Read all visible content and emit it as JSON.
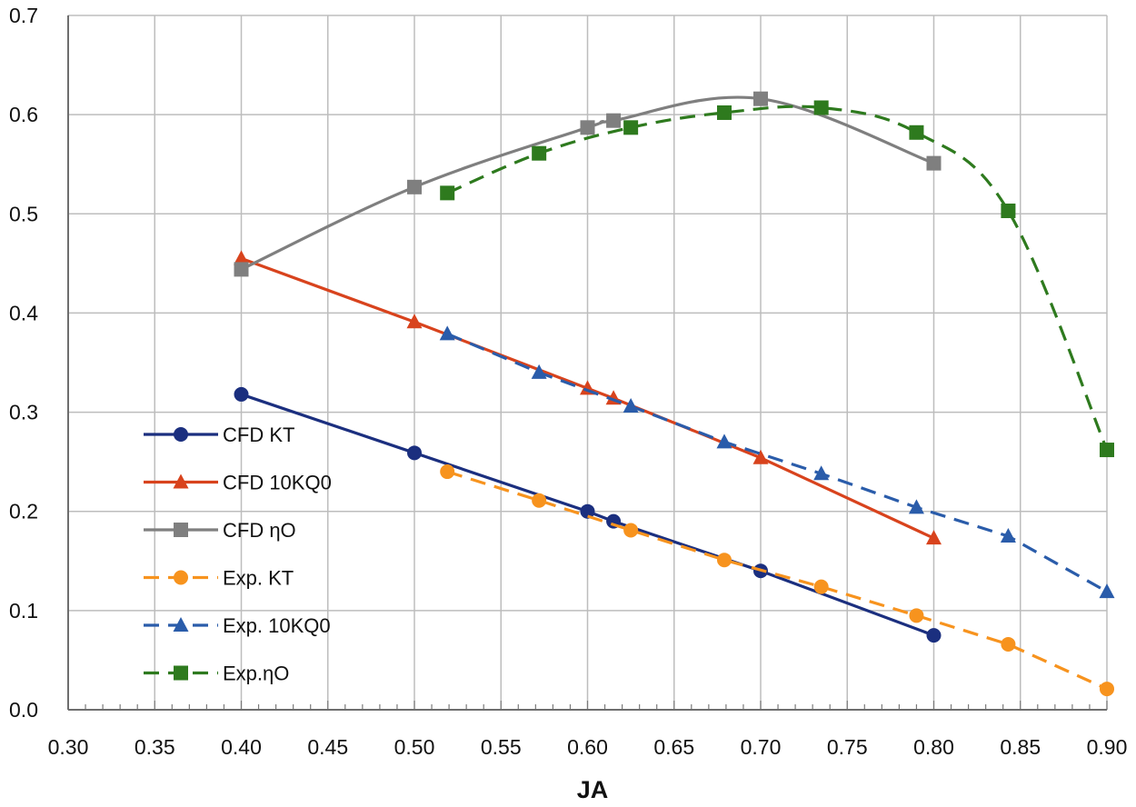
{
  "chart_data": {
    "type": "line",
    "title": "",
    "xlabel": "JA",
    "ylabel": "",
    "xlim": [
      0.3,
      0.9
    ],
    "ylim": [
      0.0,
      0.7
    ],
    "x_ticks": [
      "0.30",
      "0.35",
      "0.40",
      "0.45",
      "0.50",
      "0.55",
      "0.60",
      "0.65",
      "0.70",
      "0.75",
      "0.80",
      "0.85",
      "0.90"
    ],
    "y_ticks": [
      "0.0",
      "0.1",
      "0.2",
      "0.3",
      "0.4",
      "0.5",
      "0.6",
      "0.7"
    ],
    "grid": true,
    "legend_position": "lower-left",
    "series": [
      {
        "name": "CFD KT",
        "color": "#1b2f7f",
        "marker": "circle",
        "dash": "solid",
        "smooth": false,
        "x": [
          0.4,
          0.5,
          0.6,
          0.615,
          0.7,
          0.8
        ],
        "y": [
          0.318,
          0.259,
          0.2,
          0.19,
          0.14,
          0.075
        ]
      },
      {
        "name": "CFD 10KQ0",
        "color": "#d8431d",
        "marker": "triangle",
        "dash": "solid",
        "smooth": false,
        "x": [
          0.4,
          0.5,
          0.6,
          0.615,
          0.7,
          0.8
        ],
        "y": [
          0.455,
          0.391,
          0.324,
          0.314,
          0.254,
          0.173
        ]
      },
      {
        "name": "CFD ηO",
        "color": "#7f7f7f",
        "marker": "square",
        "dash": "solid",
        "smooth": true,
        "x": [
          0.4,
          0.5,
          0.6,
          0.615,
          0.7,
          0.8
        ],
        "y": [
          0.444,
          0.527,
          0.587,
          0.594,
          0.616,
          0.551
        ]
      },
      {
        "name": "Exp. KT",
        "color": "#f7931e",
        "marker": "circle",
        "dash": "dashed",
        "smooth": false,
        "x": [
          0.519,
          0.572,
          0.625,
          0.679,
          0.735,
          0.79,
          0.843,
          0.9
        ],
        "y": [
          0.24,
          0.211,
          0.181,
          0.151,
          0.124,
          0.095,
          0.066,
          0.021
        ]
      },
      {
        "name": "Exp. 10KQ0",
        "color": "#2a5caa",
        "marker": "triangle",
        "dash": "dashed",
        "smooth": false,
        "x": [
          0.519,
          0.572,
          0.625,
          0.679,
          0.735,
          0.79,
          0.843,
          0.9
        ],
        "y": [
          0.379,
          0.34,
          0.306,
          0.27,
          0.238,
          0.204,
          0.175,
          0.119
        ]
      },
      {
        "name": "Exp.ηO",
        "color": "#2e7a1e",
        "marker": "square",
        "dash": "dashed",
        "smooth": true,
        "x": [
          0.519,
          0.572,
          0.625,
          0.679,
          0.735,
          0.79,
          0.843,
          0.9
        ],
        "y": [
          0.521,
          0.561,
          0.587,
          0.602,
          0.607,
          0.582,
          0.503,
          0.262
        ]
      }
    ]
  }
}
